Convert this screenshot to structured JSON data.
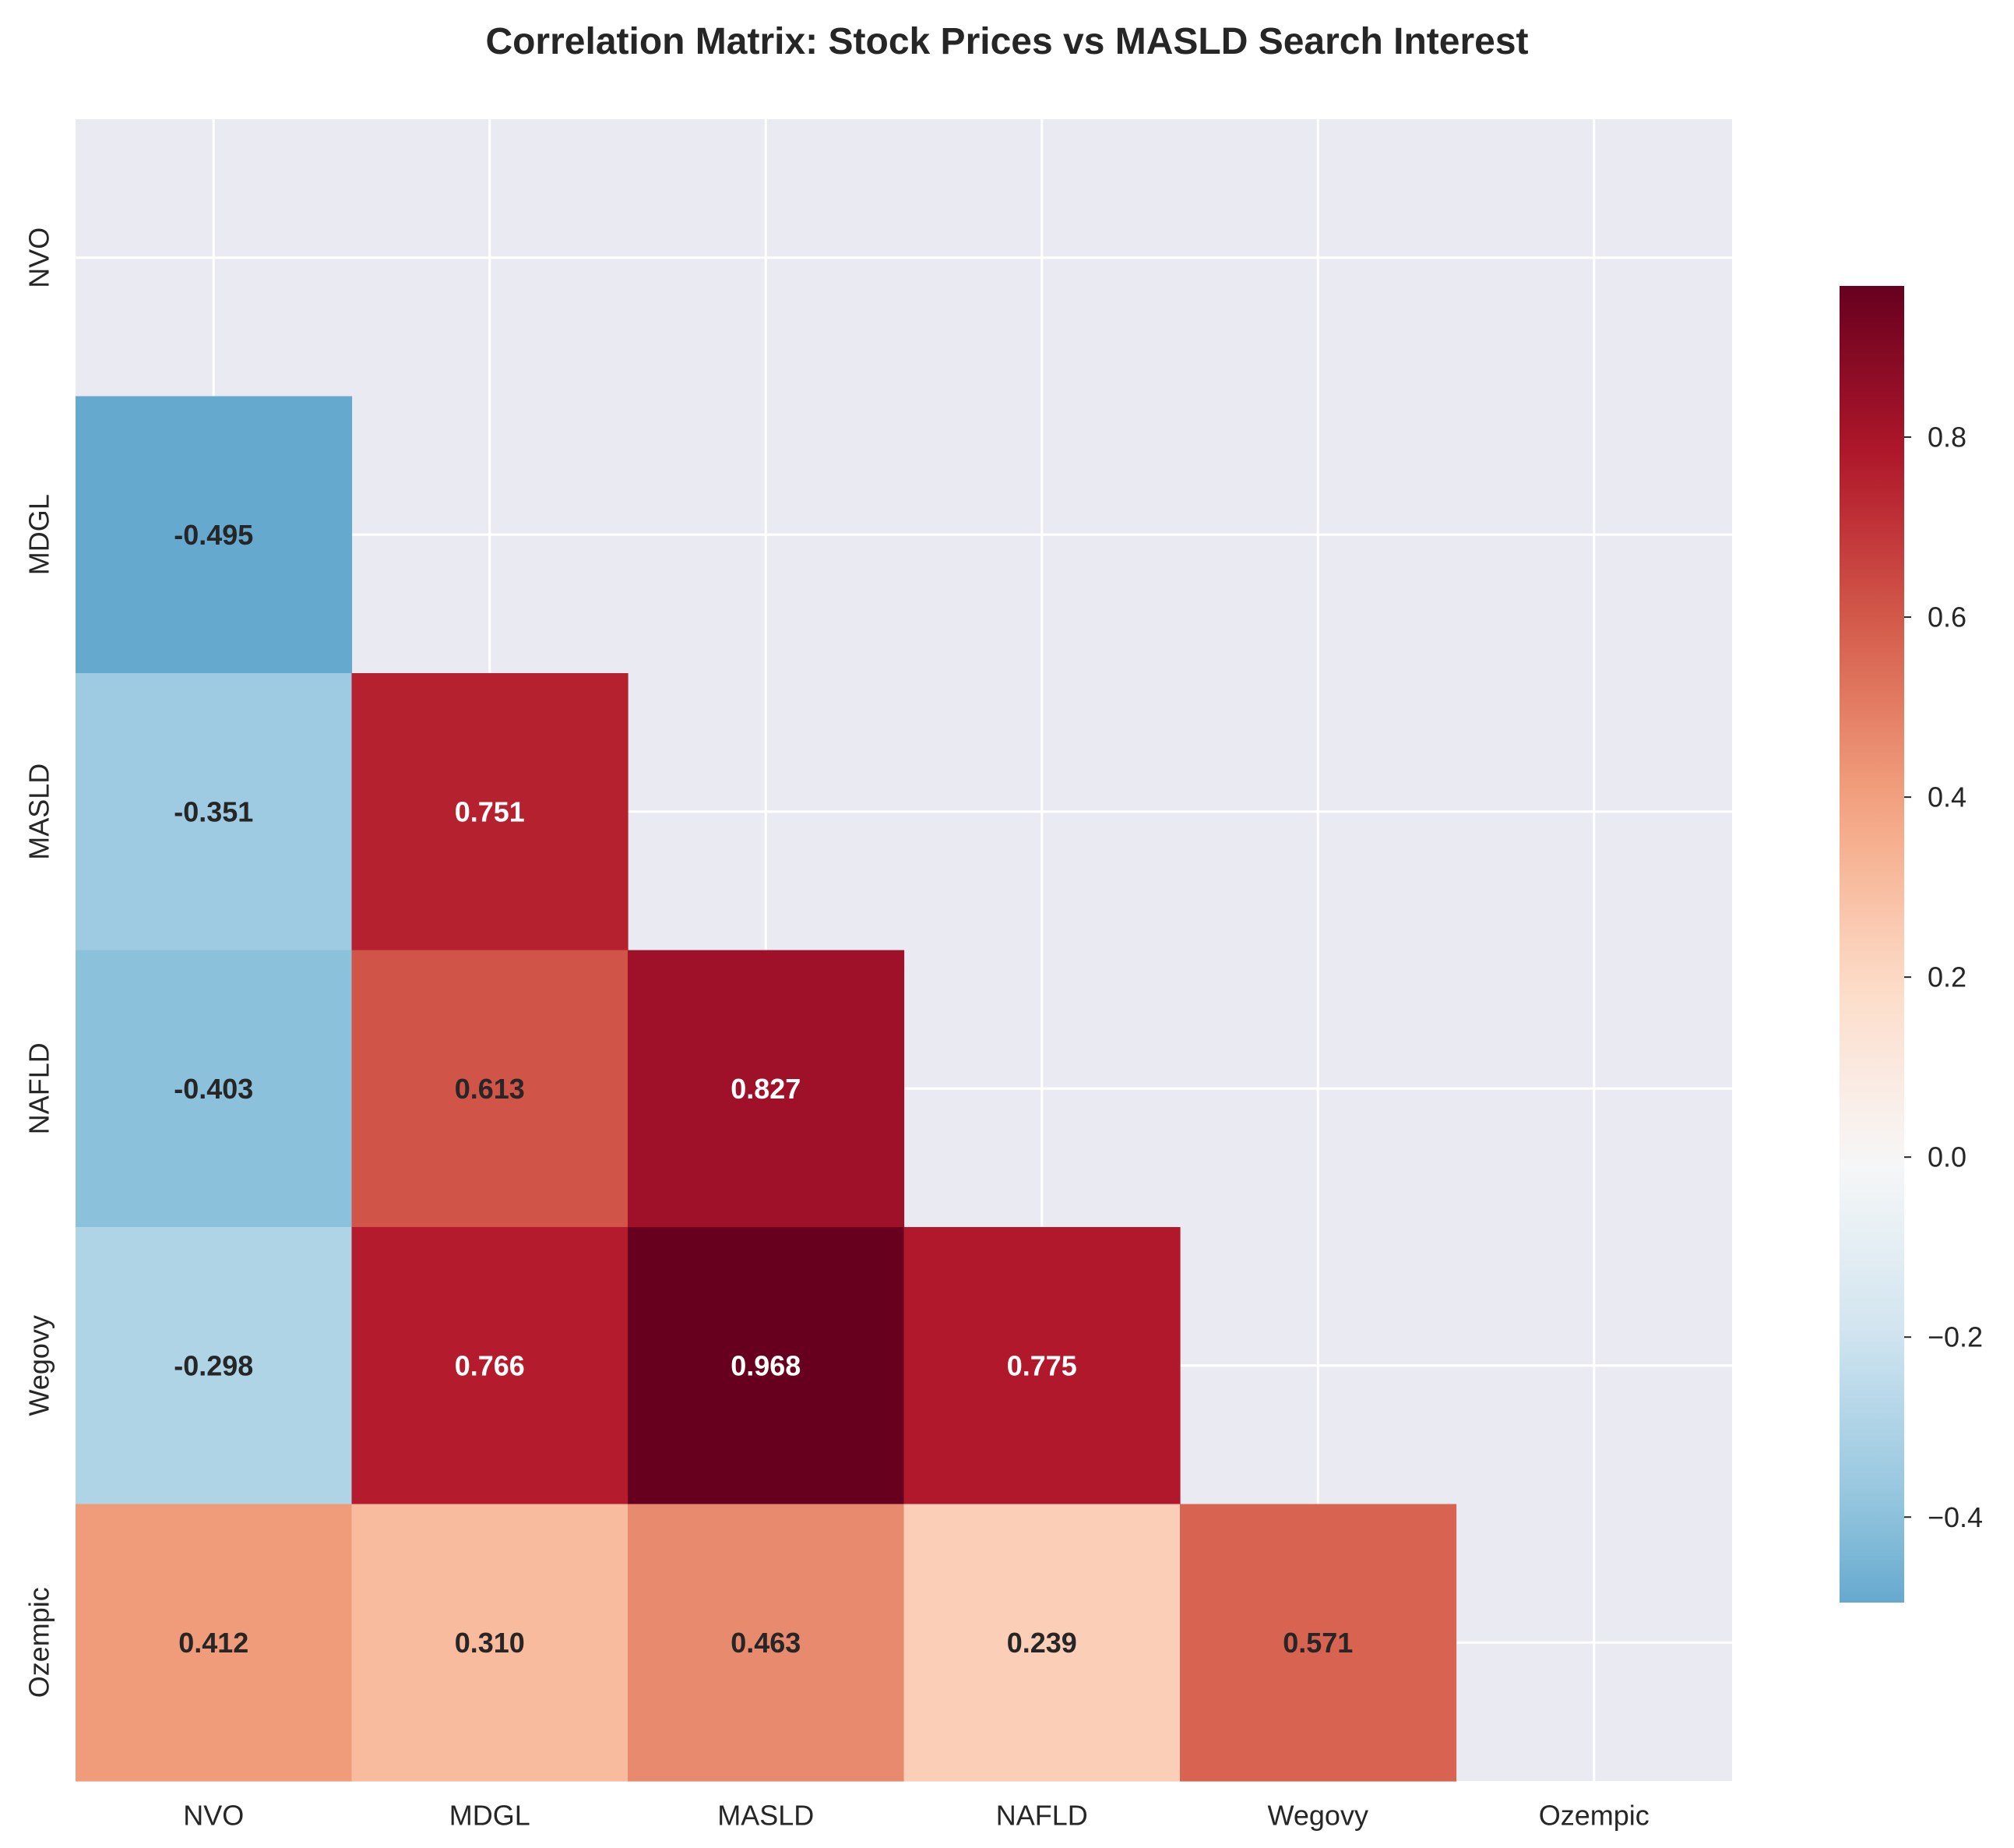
{
  "chart_data": {
    "type": "heatmap",
    "title": "Correlation Matrix: Stock Prices vs MASLD Search Interest",
    "variables": [
      "NVO",
      "MDGL",
      "MASLD",
      "NAFLD",
      "Wegovy",
      "Ozempic"
    ],
    "mask": "upper-triangle-including-diagonal",
    "matrix": [
      [
        null,
        null,
        null,
        null,
        null,
        null
      ],
      [
        -0.495,
        null,
        null,
        null,
        null,
        null
      ],
      [
        -0.351,
        0.751,
        null,
        null,
        null,
        null
      ],
      [
        -0.403,
        0.613,
        0.827,
        null,
        null,
        null
      ],
      [
        -0.298,
        0.766,
        0.968,
        0.775,
        null,
        null
      ],
      [
        0.412,
        0.31,
        0.463,
        0.239,
        0.571,
        null
      ]
    ],
    "cell_labels": [
      [
        null,
        null,
        null,
        null,
        null,
        null
      ],
      [
        "-0.495",
        null,
        null,
        null,
        null,
        null
      ],
      [
        "-0.351",
        "0.751",
        null,
        null,
        null,
        null
      ],
      [
        "-0.403",
        "0.613",
        "0.827",
        null,
        null,
        null
      ],
      [
        "-0.298",
        "0.766",
        "0.968",
        "0.775",
        null,
        null
      ],
      [
        "0.412",
        "0.310",
        "0.463",
        "0.239",
        "0.571",
        null
      ]
    ],
    "colormap": "RdBu_r",
    "center": 0,
    "vmin": -0.495,
    "vmax": 0.968,
    "colorbar": {
      "ticks": [
        -0.4,
        -0.2,
        0.0,
        0.2,
        0.4,
        0.6,
        0.8
      ],
      "tick_labels": [
        "−0.4",
        "−0.2",
        "0.0",
        "0.2",
        "0.4",
        "0.6",
        "0.8"
      ]
    },
    "grid": true,
    "background_color": "#eaeaf2",
    "xlabel": "",
    "ylabel": ""
  }
}
